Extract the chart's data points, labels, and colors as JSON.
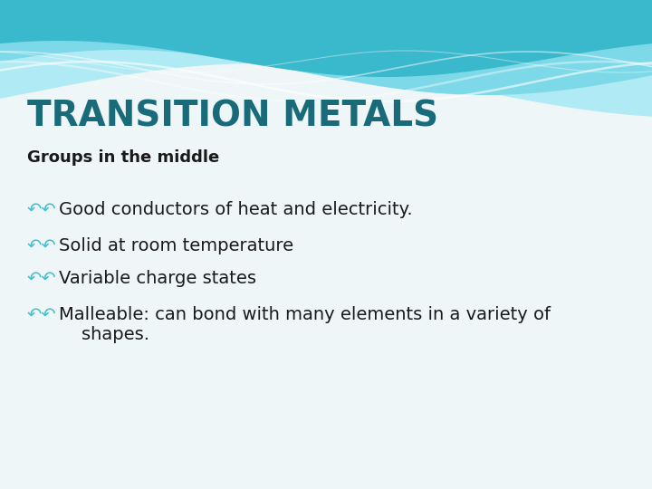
{
  "title": "TRANSITION METALS",
  "title_color": "#1a6b7a",
  "title_fontsize": 28,
  "subtitle": "Groups in the middle",
  "subtitle_color": "#1a1a1a",
  "subtitle_fontsize": 13,
  "bullet_symbol": "↶↶",
  "bullet_color": "#40c0d0",
  "bullet_fontsize": 14,
  "text_color": "#1a1a1a",
  "text_fontsize": 14,
  "background_color": "#eef6f8",
  "bullets": [
    "Good conductors of heat and electricity.",
    "Solid at room temperature",
    "Variable charge states",
    "Malleable: can bond with many elements in a variety of\n    shapes."
  ],
  "wave_dark": "#3ab8cc",
  "wave_mid": "#7dd8e8",
  "wave_light": "#b0eaf4",
  "wave_white": "#d8f4f8"
}
